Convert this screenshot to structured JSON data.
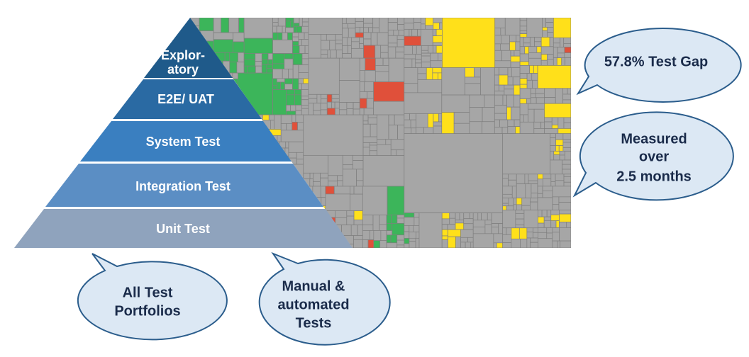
{
  "pyramid": {
    "levels": [
      [
        "Explor-",
        "atory"
      ],
      [
        "E2E/ UAT"
      ],
      [
        "System Test"
      ],
      [
        "Integration Test"
      ],
      [
        "Unit Test"
      ]
    ]
  },
  "callouts": [
    [
      "57.8% Test Gap"
    ],
    [
      "Measured",
      "over",
      "2.5 months"
    ],
    [
      "All Test",
      "Portfolios"
    ],
    [
      "Manual &",
      "automated",
      "Tests"
    ]
  ]
}
